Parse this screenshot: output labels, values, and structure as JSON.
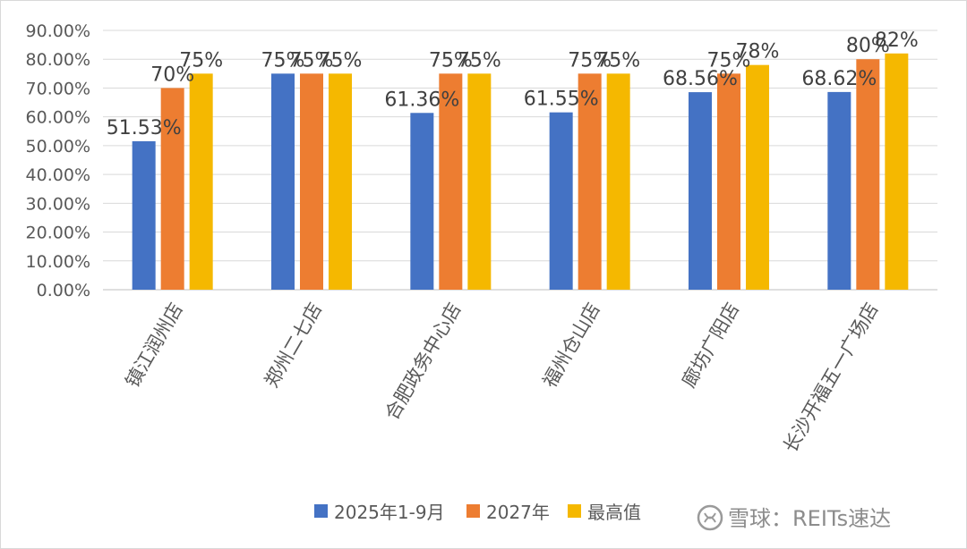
{
  "chart_data": {
    "type": "bar",
    "categories": [
      "镇江润州店",
      "郑州二七店",
      "合肥政务中心店",
      "福州仓山店",
      "廊坊广阳店",
      "长沙开福五一广场店"
    ],
    "series": [
      {
        "name": "2025年1-9月",
        "color": "#4472C4",
        "values": [
          51.53,
          75,
          61.36,
          61.55,
          68.56,
          68.62
        ],
        "labels": [
          "51.53%",
          "75%",
          "61.36%",
          "61.55%",
          "68.56%",
          "68.62%"
        ]
      },
      {
        "name": "2027年",
        "color": "#ED7D31",
        "values": [
          70,
          75,
          75,
          75,
          75,
          80
        ],
        "labels": [
          "70%",
          "75%",
          "75%",
          "75%",
          "75%",
          "80%"
        ]
      },
      {
        "name": "最高值",
        "color": "#F5B800",
        "values": [
          75,
          75,
          75,
          75,
          78,
          82
        ],
        "labels": [
          "75%",
          "75%",
          "75%",
          "75%",
          "78%",
          "82%"
        ]
      }
    ],
    "yticks": [
      "0.00%",
      "10.00%",
      "20.00%",
      "30.00%",
      "40.00%",
      "50.00%",
      "60.00%",
      "70.00%",
      "80.00%",
      "90.00%"
    ],
    "ylim": [
      0,
      90
    ],
    "grid": true,
    "legend_position": "bottom",
    "title": "",
    "xlabel": "",
    "ylabel": ""
  },
  "watermark": {
    "icon": "xueqiu-logo-icon",
    "text": "雪球：REITs速达"
  }
}
